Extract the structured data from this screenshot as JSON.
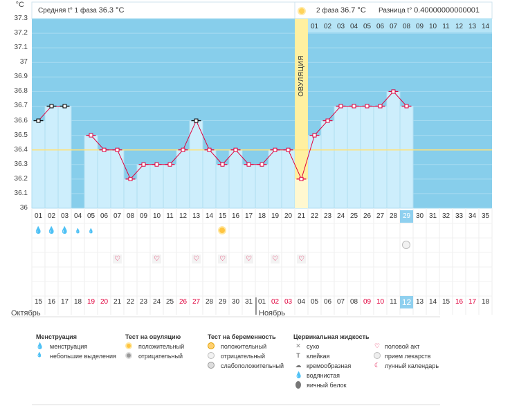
{
  "y_axis": {
    "unit": "°C",
    "ticks": [
      "37.3",
      "37.2",
      "37.1",
      "37",
      "36.9",
      "36.8",
      "36.7",
      "36.6",
      "36.5",
      "36.4",
      "36.3",
      "36.2",
      "36.1",
      "36"
    ],
    "min": 36.0,
    "max": 37.3
  },
  "header": {
    "phase1_label": "Средняя t° 1 фаза",
    "phase1_value": "36.3 °C",
    "phase2_label": "2 фаза",
    "phase2_value": "36.7 °C",
    "diff_label": "Разница t°",
    "diff_value": "0.40000000000001"
  },
  "ovulation_label": "ОВУЛЯЦИЯ",
  "cover_line": 36.4,
  "phase2_day_numbers": [
    "01",
    "02",
    "03",
    "04",
    "05",
    "06",
    "07",
    "08",
    "09",
    "10",
    "11",
    "12",
    "13",
    "14"
  ],
  "chart_data": {
    "type": "line",
    "title": "",
    "xlabel": "",
    "ylabel": "°C",
    "ylim": [
      36.0,
      37.3
    ],
    "cycle_days": [
      "01",
      "02",
      "03",
      "04",
      "05",
      "06",
      "07",
      "08",
      "09",
      "10",
      "11",
      "12",
      "13",
      "14",
      "15",
      "16",
      "17",
      "18",
      "19",
      "20",
      "21",
      "22",
      "23",
      "24",
      "25",
      "26",
      "27",
      "28",
      "29",
      "30",
      "31",
      "32",
      "33",
      "34",
      "35"
    ],
    "series": [
      {
        "values": [
          36.6,
          36.7,
          36.7,
          null,
          36.5,
          36.4,
          36.4,
          36.2,
          36.3,
          36.3,
          36.3,
          36.4,
          36.6,
          36.4,
          36.3,
          36.4,
          36.3,
          36.3,
          36.4,
          36.4,
          36.2,
          36.5,
          36.6,
          36.7,
          36.7,
          36.7,
          36.7,
          36.8,
          36.7,
          null,
          null,
          null,
          null,
          null,
          null
        ]
      }
    ],
    "excluded_days": [
      "01",
      "02",
      "03",
      "13"
    ],
    "ovulation_day": "21",
    "current_day": "29"
  },
  "calendar": {
    "dates": [
      "15",
      "16",
      "17",
      "18",
      "19",
      "20",
      "21",
      "22",
      "23",
      "24",
      "25",
      "26",
      "27",
      "28",
      "29",
      "30",
      "31",
      "01",
      "02",
      "03",
      "04",
      "05",
      "06",
      "07",
      "08",
      "09",
      "10",
      "11",
      "12",
      "13",
      "14",
      "15",
      "16",
      "17",
      "18"
    ],
    "red_dates_index": [
      4,
      5,
      11,
      12,
      18,
      19,
      25,
      26,
      32,
      33
    ],
    "current_index": 28,
    "month1": "Октябрь",
    "month2": "Ноябрь"
  },
  "marks": {
    "menstruation_large_days": [
      0,
      1,
      2
    ],
    "menstruation_small_days": [
      3,
      4
    ],
    "ovulation_positive_day": 14,
    "medication_day": 28,
    "intercourse_days": [
      6,
      9,
      12,
      14,
      16,
      18,
      20
    ]
  },
  "legend": {
    "menstruation": {
      "title": "Менструация",
      "items": [
        "менструация",
        "небольшие выделения"
      ]
    },
    "ovulation_test": {
      "title": "Тест на овуляцию",
      "items": [
        "положительный",
        "отрицательный"
      ]
    },
    "pregnancy_test": {
      "title": "Тест на беременность",
      "items": [
        "положительный",
        "отрицательный",
        "слабоположительный"
      ]
    },
    "cervical_fluid": {
      "title": "Цервикальная жидкость",
      "items": [
        "сухо",
        "клейкая",
        "кремообразная",
        "водянистая",
        "яичный белок"
      ]
    },
    "other": {
      "items": [
        "половой акт",
        "прием лекарств",
        "лунный календарь"
      ]
    }
  },
  "colors": {
    "sky": "#87ceeb",
    "bar": "#cdeefc",
    "line": "#e0003c",
    "ovulation": "#fff0a0",
    "red_text": "#e0003c",
    "selected": "#8fd0ef"
  }
}
